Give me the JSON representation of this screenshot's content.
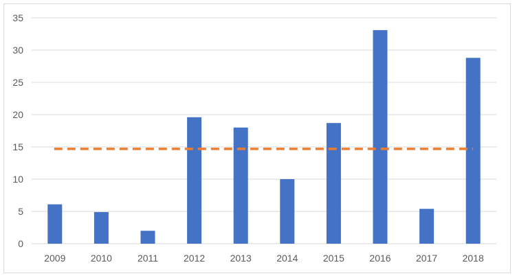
{
  "chart_data": {
    "type": "bar",
    "title": "",
    "xlabel": "",
    "ylabel": "",
    "categories": [
      "2009",
      "2010",
      "2011",
      "2012",
      "2013",
      "2014",
      "2015",
      "2016",
      "2017",
      "2018"
    ],
    "series": [
      {
        "type": "bar",
        "values": [
          6.1,
          4.9,
          2.0,
          19.6,
          18.0,
          10.0,
          18.7,
          33.1,
          5.4,
          28.8
        ]
      },
      {
        "type": "line",
        "style": "dashed",
        "values": [
          14.7,
          14.7,
          14.7,
          14.7,
          14.7,
          14.7,
          14.7,
          14.7,
          14.7,
          14.7
        ]
      }
    ],
    "yticks": [
      0,
      5,
      10,
      15,
      20,
      25,
      30,
      35
    ],
    "ylim": [
      0,
      35
    ],
    "grid": true,
    "legend": "none",
    "colors": {
      "bar": "#4472c4",
      "line": "#ed7d31",
      "grid": "#d9d9d9",
      "text": "#595959"
    }
  }
}
